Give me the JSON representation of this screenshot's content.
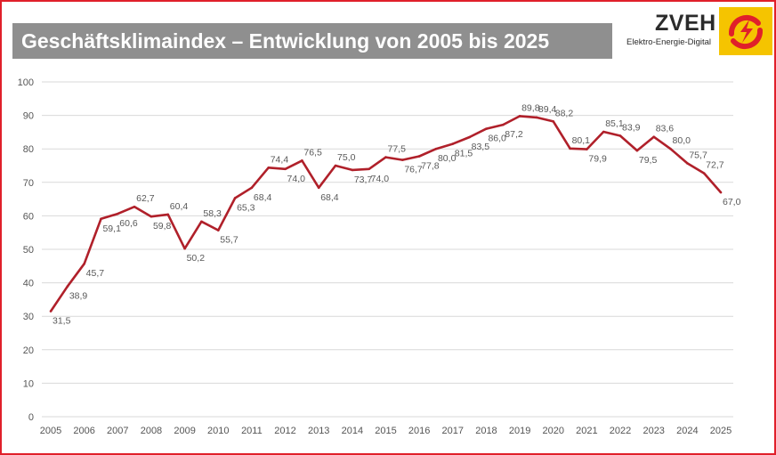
{
  "header": {
    "title": "Geschäftsklimaindex – Entwicklung von 2005 bis 2025"
  },
  "logo": {
    "name": "ZVEH",
    "subtitle": "Elektro-Energie-Digital",
    "accent_color": "#f5c400",
    "mark_color": "#e0202a"
  },
  "colors": {
    "frame": "#e0202a",
    "title_bar": "#8f8f8f",
    "line": "#b0202a",
    "grid": "#d9d9d9"
  },
  "chart_data": {
    "type": "line",
    "title": "Geschäftsklimaindex – Entwicklung von 2005 bis 2025",
    "xlabel": "",
    "ylabel": "",
    "ylim": [
      0,
      100
    ],
    "yticks": [
      0,
      10,
      20,
      30,
      40,
      50,
      60,
      70,
      80,
      90,
      100
    ],
    "xlim": [
      2005,
      2025
    ],
    "xticks": [
      "2005",
      "2006",
      "2007",
      "2008",
      "2009",
      "2010",
      "2011",
      "2012",
      "2013",
      "2014",
      "2015",
      "2016",
      "2017",
      "2018",
      "2019",
      "2020",
      "2021",
      "2022",
      "2023",
      "2024",
      "2025"
    ],
    "grid": true,
    "legend": "none",
    "series": [
      {
        "points": [
          {
            "x": 2005.0,
            "y": 31.5,
            "label": "31,5"
          },
          {
            "x": 2005.5,
            "y": 38.9,
            "label": "38,9"
          },
          {
            "x": 2006.0,
            "y": 45.7,
            "label": "45,7"
          },
          {
            "x": 2006.5,
            "y": 59.1,
            "label": "59,1"
          },
          {
            "x": 2007.0,
            "y": 60.6,
            "label": "60,6"
          },
          {
            "x": 2007.5,
            "y": 62.7,
            "label": "62,7"
          },
          {
            "x": 2008.0,
            "y": 59.8,
            "label": "59,8"
          },
          {
            "x": 2008.5,
            "y": 60.4,
            "label": "60,4"
          },
          {
            "x": 2009.0,
            "y": 50.2,
            "label": "50,2"
          },
          {
            "x": 2009.5,
            "y": 58.3,
            "label": "58,3"
          },
          {
            "x": 2010.0,
            "y": 55.7,
            "label": "55,7"
          },
          {
            "x": 2010.5,
            "y": 65.3,
            "label": "65,3"
          },
          {
            "x": 2011.0,
            "y": 68.4,
            "label": "68,4"
          },
          {
            "x": 2011.5,
            "y": 74.4,
            "label": "74,4"
          },
          {
            "x": 2012.0,
            "y": 74.0,
            "label": "74,0"
          },
          {
            "x": 2012.5,
            "y": 76.5,
            "label": "76,5"
          },
          {
            "x": 2013.0,
            "y": 68.4,
            "label": "68,4"
          },
          {
            "x": 2013.5,
            "y": 75.0,
            "label": "75,0"
          },
          {
            "x": 2014.0,
            "y": 73.7,
            "label": "73,7"
          },
          {
            "x": 2014.5,
            "y": 74.0,
            "label": "74,0"
          },
          {
            "x": 2015.0,
            "y": 77.5,
            "label": "77,5"
          },
          {
            "x": 2015.5,
            "y": 76.7,
            "label": "76,7"
          },
          {
            "x": 2016.0,
            "y": 77.8,
            "label": "77,8"
          },
          {
            "x": 2016.5,
            "y": 80.0,
            "label": "80,0"
          },
          {
            "x": 2017.0,
            "y": 81.5,
            "label": "81,5"
          },
          {
            "x": 2017.5,
            "y": 83.5,
            "label": "83,5"
          },
          {
            "x": 2018.0,
            "y": 86.0,
            "label": "86,0"
          },
          {
            "x": 2018.5,
            "y": 87.2,
            "label": "87,2"
          },
          {
            "x": 2019.0,
            "y": 89.8,
            "label": "89,8"
          },
          {
            "x": 2019.5,
            "y": 89.4,
            "label": "89,4"
          },
          {
            "x": 2020.0,
            "y": 88.2,
            "label": "88,2"
          },
          {
            "x": 2020.5,
            "y": 80.1,
            "label": "80,1"
          },
          {
            "x": 2021.0,
            "y": 79.9,
            "label": "79,9"
          },
          {
            "x": 2021.5,
            "y": 85.1,
            "label": "85,1"
          },
          {
            "x": 2022.0,
            "y": 83.9,
            "label": "83,9"
          },
          {
            "x": 2022.5,
            "y": 79.5,
            "label": "79,5"
          },
          {
            "x": 2023.0,
            "y": 83.6,
            "label": "83,6"
          },
          {
            "x": 2023.5,
            "y": 80.0,
            "label": "80,0"
          },
          {
            "x": 2024.0,
            "y": 75.7,
            "label": "75,7"
          },
          {
            "x": 2024.5,
            "y": 72.7,
            "label": "72,7"
          },
          {
            "x": 2025.0,
            "y": 67.0,
            "label": "67,0"
          }
        ]
      }
    ]
  }
}
